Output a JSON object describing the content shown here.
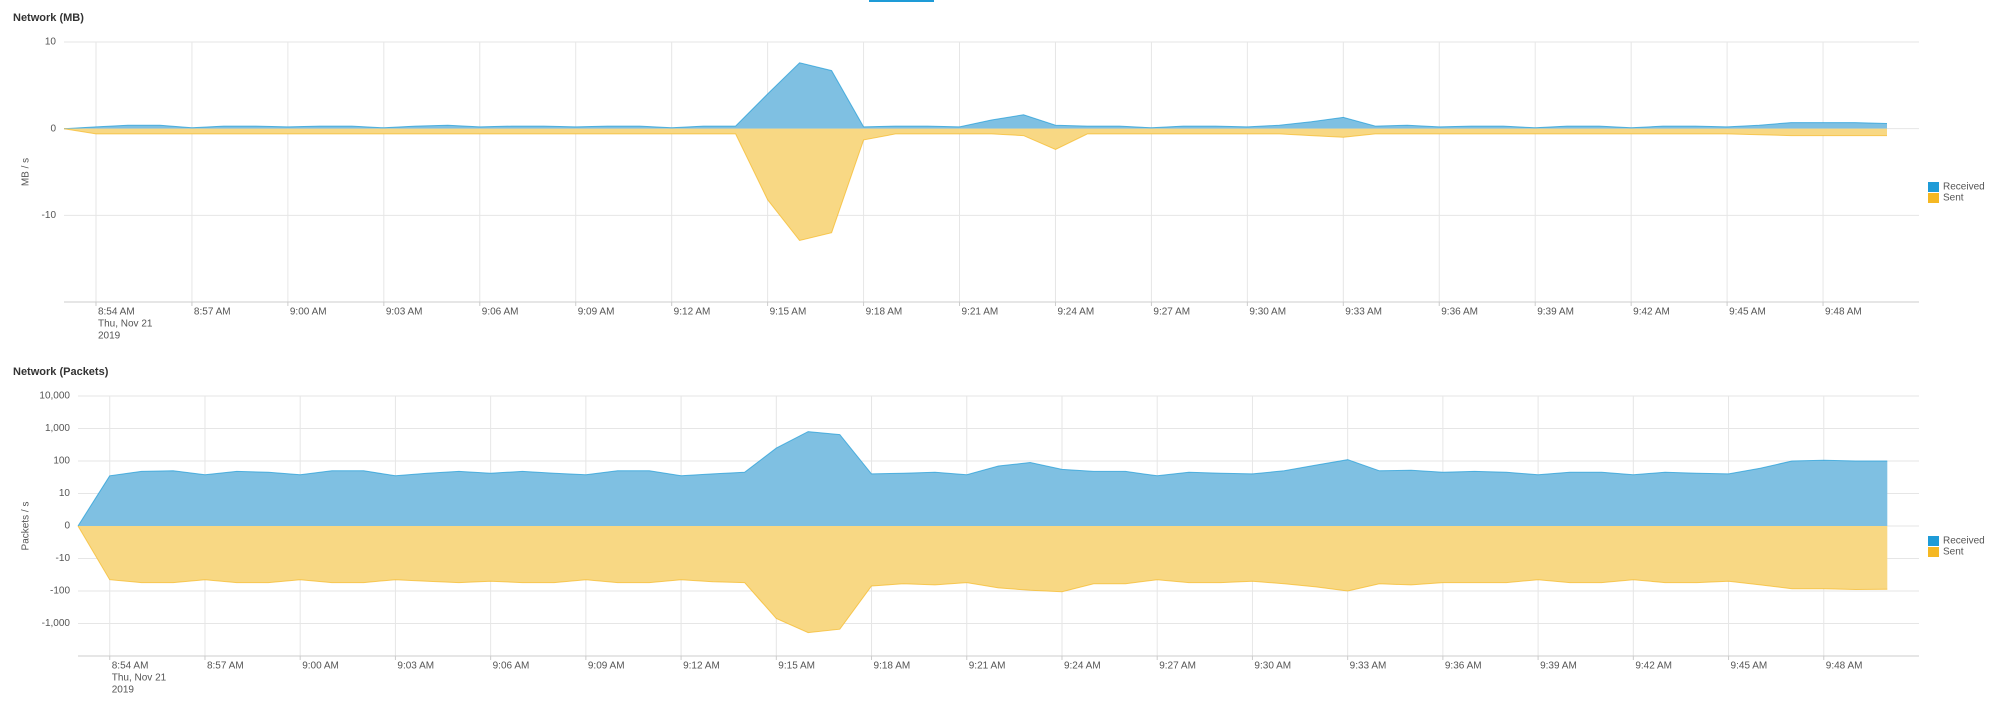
{
  "chart_data": [
    {
      "type": "area",
      "title": "Network (MB)",
      "y_label": "MB / s",
      "yscale": "linear",
      "x": [
        "8:53 AM",
        "8:54 AM",
        "8:55 AM",
        "8:56 AM",
        "8:57 AM",
        "8:58 AM",
        "8:59 AM",
        "9:00 AM",
        "9:01 AM",
        "9:02 AM",
        "9:03 AM",
        "9:04 AM",
        "9:05 AM",
        "9:06 AM",
        "9:07 AM",
        "9:08 AM",
        "9:09 AM",
        "9:10 AM",
        "9:11 AM",
        "9:12 AM",
        "9:13 AM",
        "9:14 AM",
        "9:15 AM",
        "9:16 AM",
        "9:17 AM",
        "9:18 AM",
        "9:19 AM",
        "9:20 AM",
        "9:21 AM",
        "9:22 AM",
        "9:23 AM",
        "9:24 AM",
        "9:25 AM",
        "9:26 AM",
        "9:27 AM",
        "9:28 AM",
        "9:29 AM",
        "9:30 AM",
        "9:31 AM",
        "9:32 AM",
        "9:33 AM",
        "9:34 AM",
        "9:35 AM",
        "9:36 AM",
        "9:37 AM",
        "9:38 AM",
        "9:39 AM",
        "9:40 AM",
        "9:41 AM",
        "9:42 AM",
        "9:43 AM",
        "9:44 AM",
        "9:45 AM",
        "9:46 AM",
        "9:47 AM",
        "9:48 AM",
        "9:49 AM",
        "9:50 AM"
      ],
      "xlim": [
        "8:53 AM",
        "9:51 AM"
      ],
      "xticks": [
        "8:54 AM",
        "8:57 AM",
        "9:00 AM",
        "9:03 AM",
        "9:06 AM",
        "9:09 AM",
        "9:12 AM",
        "9:15 AM",
        "9:18 AM",
        "9:21 AM",
        "9:24 AM",
        "9:27 AM",
        "9:30 AM",
        "9:33 AM",
        "9:36 AM",
        "9:39 AM",
        "9:42 AM",
        "9:45 AM",
        "9:48 AM"
      ],
      "x_date_label": [
        "Thu, Nov 21",
        "2019"
      ],
      "ylim": [
        -20,
        10
      ],
      "yticks": [
        10,
        0,
        -10
      ],
      "grid": true,
      "legend": "right",
      "series": [
        {
          "name": "Received",
          "color": "#1e9bd7",
          "fill": "#7fc0e2",
          "values": [
            0,
            0.2,
            0.4,
            0.4,
            0.1,
            0.3,
            0.3,
            0.2,
            0.3,
            0.3,
            0.1,
            0.3,
            0.4,
            0.2,
            0.3,
            0.3,
            0.2,
            0.3,
            0.3,
            0.1,
            0.3,
            0.3,
            4,
            7.6,
            6.7,
            0.2,
            0.3,
            0.3,
            0.2,
            1,
            1.6,
            0.4,
            0.3,
            0.3,
            0.1,
            0.3,
            0.3,
            0.2,
            0.4,
            0.8,
            1.3,
            0.3,
            0.4,
            0.2,
            0.3,
            0.3,
            0.1,
            0.3,
            0.3,
            0.1,
            0.3,
            0.3,
            0.2,
            0.4,
            0.7,
            0.7,
            0.7,
            0.6
          ]
        },
        {
          "name": "Sent",
          "color": "#f5b823",
          "fill": "#f8d884",
          "values": [
            0,
            -0.6,
            -0.6,
            -0.6,
            -0.6,
            -0.6,
            -0.6,
            -0.6,
            -0.6,
            -0.6,
            -0.6,
            -0.6,
            -0.6,
            -0.6,
            -0.6,
            -0.6,
            -0.6,
            -0.6,
            -0.6,
            -0.6,
            -0.6,
            -0.6,
            -8.2,
            -12.9,
            -12,
            -1.3,
            -0.6,
            -0.6,
            -0.6,
            -0.6,
            -0.8,
            -2.4,
            -0.6,
            -0.6,
            -0.6,
            -0.6,
            -0.6,
            -0.6,
            -0.6,
            -0.8,
            -1,
            -0.6,
            -0.6,
            -0.6,
            -0.6,
            -0.6,
            -0.6,
            -0.6,
            -0.6,
            -0.6,
            -0.6,
            -0.6,
            -0.6,
            -0.7,
            -0.8,
            -0.8,
            -0.8,
            -0.8
          ]
        }
      ]
    },
    {
      "type": "area",
      "title": "Network (Packets)",
      "y_label": "Packets / s",
      "yscale": "symlog",
      "linthresh": 10,
      "x": [
        "8:53 AM",
        "8:54 AM",
        "8:55 AM",
        "8:56 AM",
        "8:57 AM",
        "8:58 AM",
        "8:59 AM",
        "9:00 AM",
        "9:01 AM",
        "9:02 AM",
        "9:03 AM",
        "9:04 AM",
        "9:05 AM",
        "9:06 AM",
        "9:07 AM",
        "9:08 AM",
        "9:09 AM",
        "9:10 AM",
        "9:11 AM",
        "9:12 AM",
        "9:13 AM",
        "9:14 AM",
        "9:15 AM",
        "9:16 AM",
        "9:17 AM",
        "9:18 AM",
        "9:19 AM",
        "9:20 AM",
        "9:21 AM",
        "9:22 AM",
        "9:23 AM",
        "9:24 AM",
        "9:25 AM",
        "9:26 AM",
        "9:27 AM",
        "9:28 AM",
        "9:29 AM",
        "9:30 AM",
        "9:31 AM",
        "9:32 AM",
        "9:33 AM",
        "9:34 AM",
        "9:35 AM",
        "9:36 AM",
        "9:37 AM",
        "9:38 AM",
        "9:39 AM",
        "9:40 AM",
        "9:41 AM",
        "9:42 AM",
        "9:43 AM",
        "9:44 AM",
        "9:45 AM",
        "9:46 AM",
        "9:47 AM",
        "9:48 AM",
        "9:49 AM",
        "9:50 AM"
      ],
      "xlim": [
        "8:53 AM",
        "9:51 AM"
      ],
      "xticks": [
        "8:54 AM",
        "8:57 AM",
        "9:00 AM",
        "9:03 AM",
        "9:06 AM",
        "9:09 AM",
        "9:12 AM",
        "9:15 AM",
        "9:18 AM",
        "9:21 AM",
        "9:24 AM",
        "9:27 AM",
        "9:30 AM",
        "9:33 AM",
        "9:36 AM",
        "9:39 AM",
        "9:42 AM",
        "9:45 AM",
        "9:48 AM"
      ],
      "x_date_label": [
        "Thu, Nov 21",
        "2019"
      ],
      "ylim": [
        -10000,
        10000
      ],
      "yticks": [
        {
          "value": 10000,
          "label": "10,000"
        },
        {
          "value": 1000,
          "label": "1,000"
        },
        100,
        10,
        0,
        -10,
        -100,
        {
          "value": -1000,
          "label": "-1,000"
        }
      ],
      "grid": true,
      "legend": "right",
      "series": [
        {
          "name": "Received",
          "color": "#1e9bd7",
          "fill": "#7fc0e2",
          "values": [
            0,
            35,
            48,
            50,
            38,
            48,
            45,
            38,
            50,
            50,
            35,
            42,
            48,
            42,
            48,
            42,
            38,
            50,
            50,
            35,
            40,
            45,
            250,
            800,
            650,
            40,
            42,
            45,
            38,
            70,
            90,
            55,
            48,
            48,
            35,
            45,
            42,
            40,
            50,
            75,
            110,
            50,
            52,
            45,
            48,
            45,
            38,
            45,
            45,
            38,
            45,
            42,
            40,
            60,
            100,
            105,
            100,
            100
          ]
        },
        {
          "name": "Sent",
          "color": "#f5b823",
          "fill": "#f8d884",
          "values": [
            0,
            -45,
            -55,
            -55,
            -45,
            -55,
            -55,
            -45,
            -55,
            -55,
            -45,
            -50,
            -55,
            -50,
            -55,
            -55,
            -45,
            -55,
            -55,
            -45,
            -52,
            -55,
            -700,
            -1900,
            -1500,
            -70,
            -60,
            -65,
            -55,
            -80,
            -95,
            -105,
            -60,
            -60,
            -45,
            -55,
            -55,
            -50,
            -60,
            -75,
            -100,
            -60,
            -65,
            -55,
            -55,
            -55,
            -45,
            -55,
            -55,
            -45,
            -55,
            -55,
            -50,
            -65,
            -85,
            -85,
            -90,
            -88
          ]
        }
      ]
    }
  ]
}
